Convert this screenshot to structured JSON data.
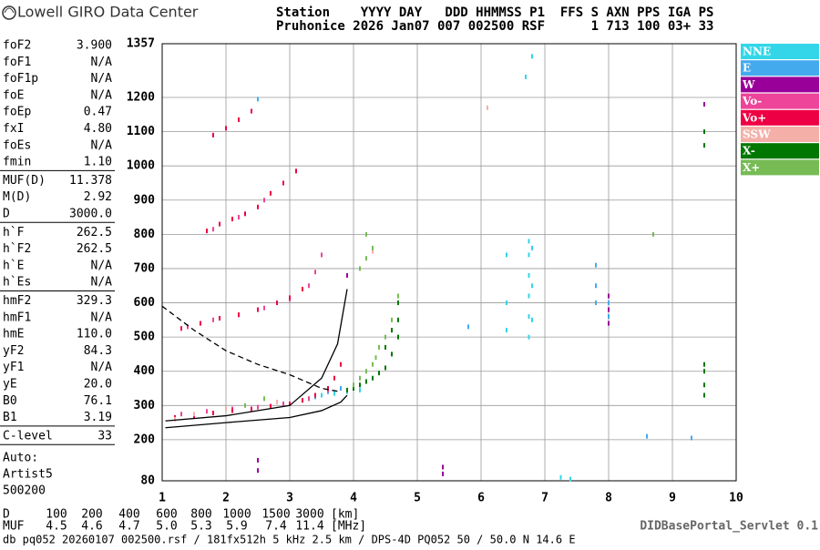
{
  "header": {
    "brand": "Lowell GIRO Data Center",
    "line1": "Station    YYYY DAY   DDD HHMMSS P1  FFS S AXN PPS IGA PS",
    "line2": "Pruhonice 2026 Jan07 007 002500 RSF      1 713 100 03+ 33"
  },
  "params": [
    [
      [
        "foF2",
        "3.900"
      ],
      [
        "foF1",
        "N/A"
      ],
      [
        "foF1p",
        "N/A"
      ],
      [
        "foE",
        "N/A"
      ],
      [
        "foEp",
        "0.47"
      ],
      [
        "fxI",
        "4.80"
      ],
      [
        "foEs",
        "N/A"
      ],
      [
        "fmin",
        "1.10"
      ]
    ],
    [
      [
        "MUF(D)",
        "11.378"
      ],
      [
        "M(D)",
        "2.92"
      ],
      [
        "D",
        "3000.0"
      ]
    ],
    [
      [
        "h`F",
        "262.5"
      ],
      [
        "h`F2",
        "262.5"
      ],
      [
        "h`E",
        "N/A"
      ],
      [
        "h`Es",
        "N/A"
      ]
    ],
    [
      [
        "hmF2",
        "329.3"
      ],
      [
        "hmF1",
        "N/A"
      ],
      [
        "hmE",
        "110.0"
      ],
      [
        "yF2",
        "84.3"
      ],
      [
        "yF1",
        "N/A"
      ],
      [
        "yE",
        "20.0"
      ],
      [
        "B0",
        "76.1"
      ],
      [
        "B1",
        "3.19"
      ]
    ],
    [
      [
        "C-level",
        "33"
      ]
    ]
  ],
  "auto": [
    "Auto:",
    "Artist5",
    "500200"
  ],
  "footer": {
    "d_label": "D",
    "d_values": [
      "100",
      "200",
      "400",
      "600",
      "800",
      "1000",
      "1500",
      "3000"
    ],
    "d_unit": "[km]",
    "muf_label": "MUF",
    "muf_values": [
      "4.5",
      "4.6",
      "4.7",
      "5.0",
      "5.3",
      "5.9",
      "7.4",
      "11.4"
    ],
    "muf_unit": "[MHz]",
    "servlet": "DIDBasePortal_Servlet 0.1",
    "info": "db pq052 20260107 002500.rsf / 181fx512h 5 kHz 2.5 km / DPS-4D PQ052 50 / 50.0 N 14.6 E"
  },
  "chart_data": {
    "type": "scatter",
    "xlim": [
      1,
      10
    ],
    "ylim": [
      80,
      1357
    ],
    "xticks": [
      1,
      2,
      3,
      4,
      5,
      6,
      7,
      8,
      9,
      10
    ],
    "yticks": [
      80,
      200,
      300,
      400,
      500,
      600,
      700,
      800,
      900,
      1000,
      1100,
      1200,
      1357
    ],
    "grid": true,
    "series": [
      {
        "name": "NNE",
        "color": "#33d6e8",
        "x": [
          3.3,
          3.5,
          3.7,
          3.9,
          4.1,
          6.4,
          6.4,
          6.4,
          6.75,
          6.75,
          6.75,
          6.75,
          6.75,
          6.75,
          6.8,
          6.8,
          6.8,
          6.7,
          6.8,
          7.25,
          7.4
        ],
        "values": [
          320,
          330,
          335,
          340,
          345,
          520,
          600,
          740,
          500,
          560,
          620,
          680,
          740,
          780,
          550,
          650,
          760,
          1260,
          1320,
          90,
          85
        ]
      },
      {
        "name": "E",
        "color": "#44aaee",
        "x": [
          3.4,
          3.6,
          3.8,
          2.5,
          5.8,
          7.8,
          7.8,
          7.8,
          8.0,
          8.0,
          9.3,
          8.6
        ],
        "values": [
          325,
          340,
          350,
          1195,
          530,
          600,
          650,
          710,
          560,
          600,
          205,
          210
        ]
      },
      {
        "name": "W",
        "color": "#990099",
        "x": [
          2.5,
          2.5,
          5.4,
          5.4,
          8.0,
          8.0,
          8.0,
          3.9,
          9.5
        ],
        "values": [
          140,
          110,
          100,
          120,
          540,
          580,
          620,
          680,
          1180
        ]
      },
      {
        "name": "Vo-",
        "color": "#ee4499",
        "x": [
          1.3,
          1.7,
          2.1,
          2.5,
          2.9,
          3.3,
          3.6,
          1.4,
          1.8,
          2.2,
          2.6,
          3.0,
          3.3,
          1.8,
          2.2,
          2.6,
          3.4,
          3.5
        ],
        "values": [
          275,
          283,
          290,
          295,
          305,
          320,
          345,
          530,
          550,
          565,
          585,
          610,
          650,
          815,
          850,
          900,
          690,
          740
        ]
      },
      {
        "name": "Vo+",
        "color": "#ee0044",
        "x": [
          1.2,
          1.5,
          1.8,
          2.1,
          2.4,
          2.7,
          3.0,
          3.2,
          3.4,
          3.6,
          3.7,
          3.8,
          1.3,
          1.6,
          1.9,
          2.2,
          2.5,
          2.8,
          3.0,
          3.2,
          1.7,
          1.9,
          2.1,
          2.3,
          2.5,
          2.7,
          2.9,
          3.1,
          1.8,
          2.0,
          2.2,
          2.4
        ],
        "values": [
          265,
          270,
          278,
          285,
          290,
          298,
          305,
          315,
          330,
          350,
          380,
          420,
          525,
          540,
          555,
          565,
          580,
          600,
          615,
          640,
          810,
          830,
          845,
          860,
          880,
          920,
          950,
          985,
          1090,
          1110,
          1135,
          1160
        ]
      },
      {
        "name": "SSW",
        "color": "#f4b0a8",
        "x": [
          1.5,
          2.0,
          2.8,
          4.3,
          6.1,
          1.2
        ],
        "values": [
          275,
          290,
          310,
          750,
          1170,
          260
        ]
      },
      {
        "name": "X-",
        "color": "#007700",
        "x": [
          3.9,
          4.0,
          4.1,
          4.2,
          4.3,
          4.4,
          4.5,
          4.6,
          4.7,
          4.7,
          4.7,
          4.5,
          4.6,
          9.5,
          9.5,
          9.5,
          9.5,
          9.5,
          9.5
        ],
        "values": [
          345,
          350,
          360,
          370,
          380,
          395,
          410,
          450,
          500,
          550,
          600,
          470,
          520,
          330,
          360,
          400,
          420,
          1060,
          1100
        ]
      },
      {
        "name": "X+",
        "color": "#77bb55",
        "x": [
          4.0,
          4.1,
          4.2,
          4.3,
          4.35,
          4.4,
          4.5,
          4.6,
          4.7,
          4.2,
          4.3,
          4.1,
          4.2,
          2.3,
          2.6,
          8.7
        ],
        "values": [
          360,
          380,
          400,
          420,
          440,
          470,
          500,
          550,
          620,
          730,
          760,
          700,
          800,
          300,
          320,
          800
        ]
      }
    ],
    "curves": [
      {
        "color": "#000000",
        "dash": false,
        "x": [
          1.05,
          2.0,
          3.0,
          3.5,
          3.8,
          3.9
        ],
        "values": [
          235,
          250,
          265,
          285,
          310,
          330
        ]
      },
      {
        "color": "#000000",
        "dash": false,
        "x": [
          1.05,
          2.0,
          3.0,
          3.5,
          3.75,
          3.9
        ],
        "values": [
          255,
          270,
          300,
          380,
          480,
          640
        ]
      },
      {
        "color": "#000000",
        "dash": true,
        "x": [
          1.0,
          1.5,
          2.0,
          2.5,
          3.0,
          3.5,
          3.8
        ],
        "values": [
          590,
          520,
          460,
          420,
          390,
          350,
          340
        ]
      }
    ]
  }
}
